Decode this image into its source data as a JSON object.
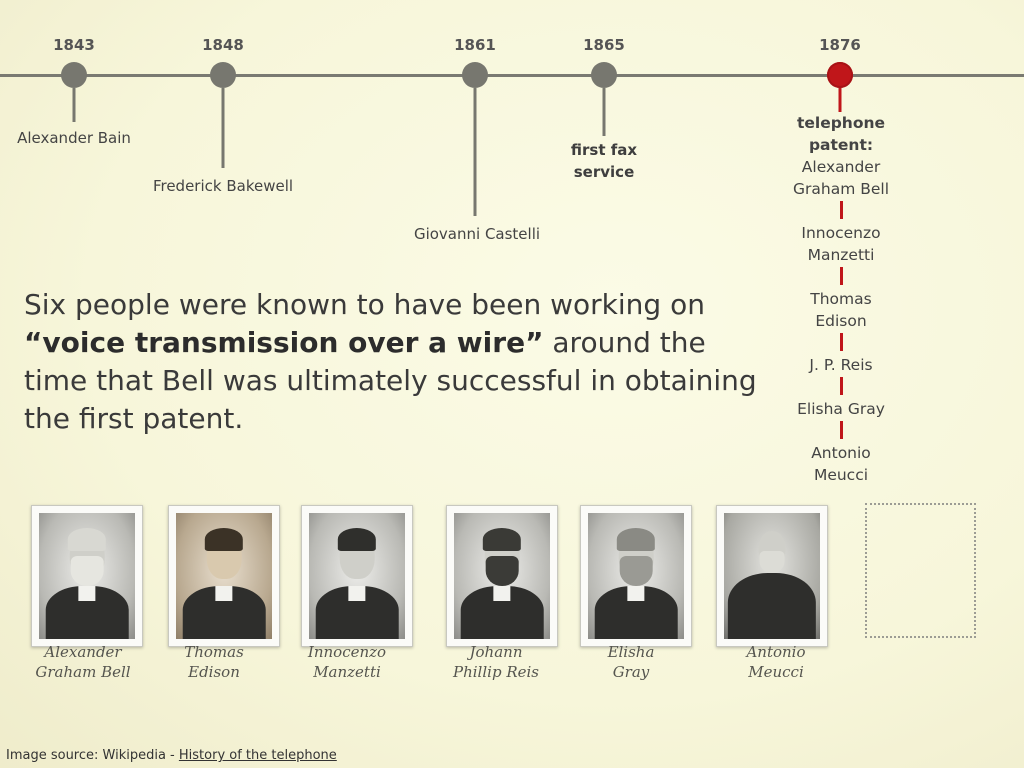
{
  "timeline": {
    "events": [
      {
        "year": "1843",
        "label": "Alexander Bain"
      },
      {
        "year": "1848",
        "label": "Frederick Bakewell"
      },
      {
        "year": "1861",
        "label": "Giovanni Castelli"
      },
      {
        "year": "1865",
        "label_line1": "first fax",
        "label_line2": "service"
      },
      {
        "year": "1876"
      }
    ],
    "patent": {
      "line1": "telephone",
      "line2": "patent:",
      "line3": "Alexander",
      "line4": "Graham Bell"
    },
    "inventors": [
      {
        "line1": "Innocenzo",
        "line2": "Manzetti"
      },
      {
        "line1": "Thomas",
        "line2": "Edison"
      },
      {
        "line1": "J. P. Reis"
      },
      {
        "line1": "Elisha Gray"
      },
      {
        "line1": "Antonio",
        "line2": "Meucci"
      }
    ],
    "accent_color": "#c0161a",
    "line_color": "#7a7a72"
  },
  "main_text": {
    "part1": "Six people were known to have been working on ",
    "bold": "“voice transmission over a wire”",
    "part2": " around the time that Bell was ultimately successful in obtaining the first patent."
  },
  "portraits": [
    {
      "name_line1": "Alexander",
      "name_line2": "Graham Bell",
      "features": "white-beard"
    },
    {
      "name_line1": "Thomas",
      "name_line2": "Edison",
      "features": "young"
    },
    {
      "name_line1": "Innocenzo",
      "name_line2": "Manzetti",
      "features": "mustache"
    },
    {
      "name_line1": "Johann",
      "name_line2": "Phillip Reis",
      "features": "dark-beard"
    },
    {
      "name_line1": "Elisha",
      "name_line2": "Gray",
      "features": "gray-beard"
    },
    {
      "name_line1": "Antonio",
      "name_line2": "Meucci",
      "features": "seated"
    }
  ],
  "footer": {
    "prefix": "Image source: Wikipedia - ",
    "link": "History of the telephone"
  }
}
